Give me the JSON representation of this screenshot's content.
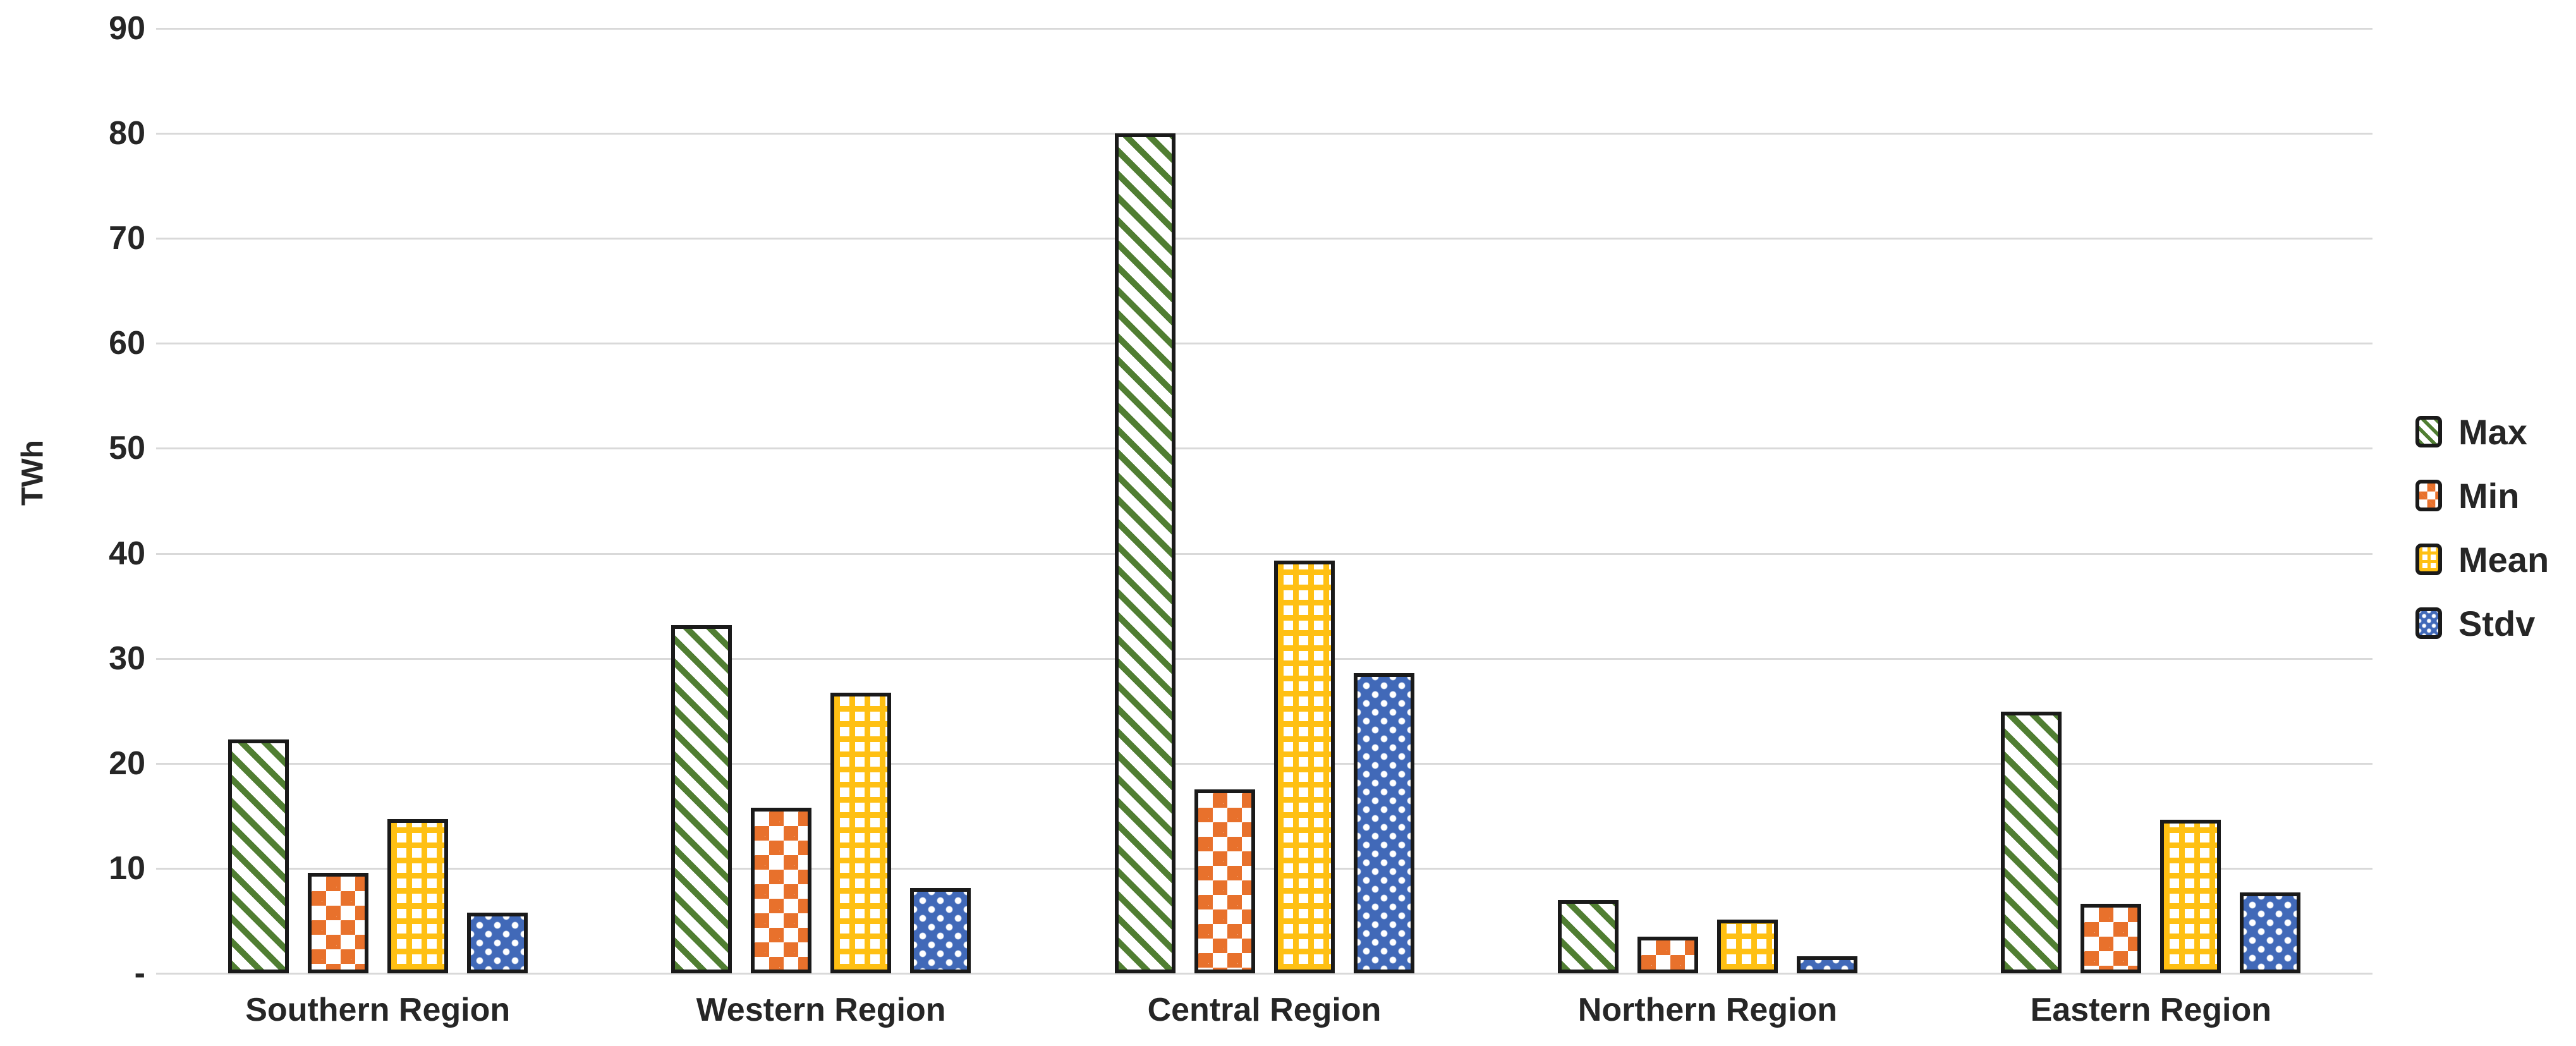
{
  "chart_data": {
    "type": "bar",
    "title": "",
    "xlabel": "",
    "ylabel": "TWh",
    "ylim": [
      0,
      90
    ],
    "ytick_step": 10,
    "yticks": [
      {
        "value": 90,
        "label": "90"
      },
      {
        "value": 80,
        "label": "80"
      },
      {
        "value": 70,
        "label": "70"
      },
      {
        "value": 60,
        "label": "60"
      },
      {
        "value": 50,
        "label": "50"
      },
      {
        "value": 40,
        "label": "40"
      },
      {
        "value": 30,
        "label": "30"
      },
      {
        "value": 20,
        "label": "20"
      },
      {
        "value": 10,
        "label": "10"
      },
      {
        "value": 0,
        "label": "-"
      }
    ],
    "categories": [
      "Southern Region",
      "Western Region",
      "Central Region",
      "Northern Region",
      "Eastern Region"
    ],
    "series": [
      {
        "name": "Max",
        "pattern": "diagonal-stripes",
        "color": "#507e32",
        "values": [
          22.3,
          33.2,
          80.0,
          7.0,
          24.9
        ]
      },
      {
        "name": "Min",
        "pattern": "checkerboard",
        "color": "#e8712c",
        "values": [
          9.6,
          15.8,
          17.5,
          3.5,
          6.6
        ]
      },
      {
        "name": "Mean",
        "pattern": "grid",
        "color": "#ffc013",
        "values": [
          14.7,
          26.7,
          39.3,
          5.1,
          14.6
        ]
      },
      {
        "name": "Stdv",
        "pattern": "dots",
        "color": "#4169b8",
        "values": [
          5.8,
          8.1,
          28.6,
          1.6,
          7.7
        ]
      }
    ],
    "legend": {
      "position": "right",
      "items": [
        "Max",
        "Min",
        "Mean",
        "Stdv"
      ]
    },
    "grid": true,
    "gridline_color": "#d9d9d9",
    "background": "#ffffff",
    "bar_border_color": "#1a1a1a",
    "text_color": "#262626"
  }
}
